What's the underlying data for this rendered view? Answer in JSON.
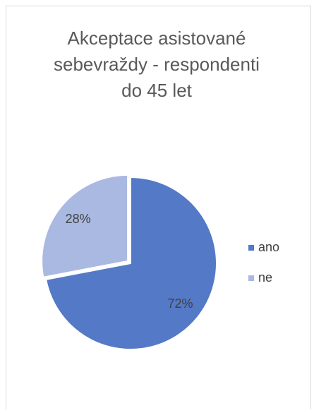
{
  "chart_data": {
    "type": "pie",
    "title": [
      "Akceptace asistované",
      "sebevraždy - respondenti",
      "do 45 let"
    ],
    "categories": [
      "ano",
      "ne"
    ],
    "values": [
      72,
      28
    ],
    "value_labels": [
      "72%",
      "28%"
    ],
    "colors": [
      "#5479c6",
      "#aab9e1"
    ],
    "legend": "right"
  }
}
